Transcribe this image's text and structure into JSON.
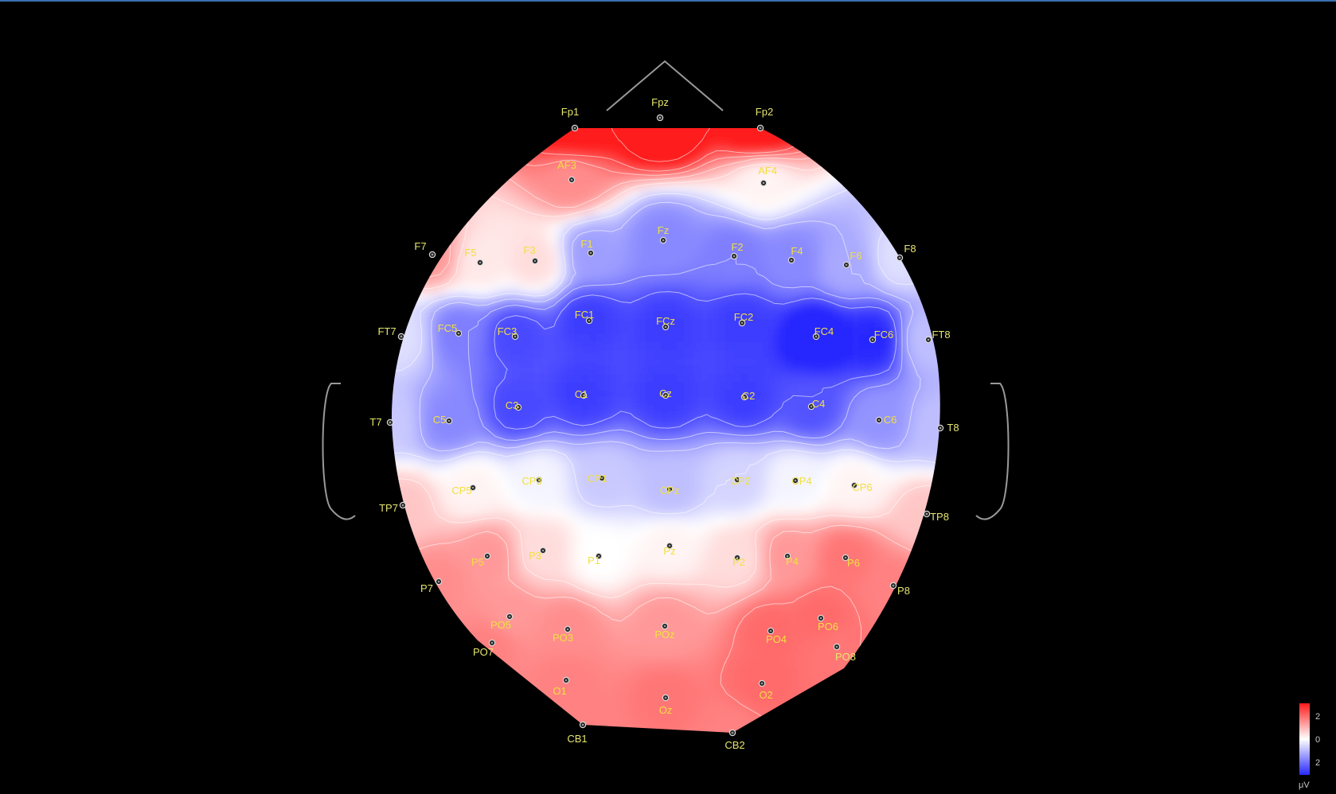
{
  "colors": {
    "background": "#000000",
    "positive": "#ff1a1a",
    "neutral": "#ffffff",
    "negative": "#2828ff",
    "electrode_label_edge": "#e6e66e",
    "electrode_label_inner": "#f0e040",
    "head_outline": "#9a9a9a"
  },
  "colorbar": {
    "ticks": [
      "2",
      "0",
      "2"
    ],
    "unit": "μV",
    "max": 2,
    "min": -2
  },
  "electrodes": [
    {
      "name": "Fpz",
      "value": 3.2
    },
    {
      "name": "Fp1",
      "value": 2.4
    },
    {
      "name": "Fp2",
      "value": 2.4
    },
    {
      "name": "AF3",
      "value": 1.0
    },
    {
      "name": "AF4",
      "value": 0.1
    },
    {
      "name": "F7",
      "value": 0.9
    },
    {
      "name": "F5",
      "value": 0.2
    },
    {
      "name": "F3",
      "value": 0.3
    },
    {
      "name": "F1",
      "value": -0.9
    },
    {
      "name": "Fz",
      "value": -1.1
    },
    {
      "name": "F2",
      "value": -1.2
    },
    {
      "name": "F4",
      "value": -1.1
    },
    {
      "name": "F6",
      "value": -0.8
    },
    {
      "name": "F8",
      "value": -0.3
    },
    {
      "name": "FT7",
      "value": -0.3
    },
    {
      "name": "FC5",
      "value": -1.2
    },
    {
      "name": "FC3",
      "value": -1.7
    },
    {
      "name": "FC1",
      "value": -1.8
    },
    {
      "name": "FCz",
      "value": -1.8
    },
    {
      "name": "FC2",
      "value": -1.8
    },
    {
      "name": "FC4",
      "value": -2.3
    },
    {
      "name": "FC6",
      "value": -2.0
    },
    {
      "name": "FT8",
      "value": -0.6
    },
    {
      "name": "T7",
      "value": -0.5
    },
    {
      "name": "C5",
      "value": -1.1
    },
    {
      "name": "C3",
      "value": -1.7
    },
    {
      "name": "C1",
      "value": -1.8
    },
    {
      "name": "Cz",
      "value": -1.8
    },
    {
      "name": "C2",
      "value": -1.8
    },
    {
      "name": "C4",
      "value": -1.6
    },
    {
      "name": "C6",
      "value": -1.0
    },
    {
      "name": "T8",
      "value": -0.6
    },
    {
      "name": "TP7",
      "value": 0.5
    },
    {
      "name": "CP5",
      "value": 0.1
    },
    {
      "name": "CP3",
      "value": -0.1
    },
    {
      "name": "CP1",
      "value": -0.5
    },
    {
      "name": "CPz",
      "value": -0.6
    },
    {
      "name": "CP2",
      "value": -0.4
    },
    {
      "name": "CP4",
      "value": -0.1
    },
    {
      "name": "CP6",
      "value": 0.1
    },
    {
      "name": "TP8",
      "value": 0.5
    },
    {
      "name": "P7",
      "value": 1.0
    },
    {
      "name": "P5",
      "value": 0.9
    },
    {
      "name": "P3",
      "value": 0.3
    },
    {
      "name": "P1",
      "value": 0.0
    },
    {
      "name": "Pz",
      "value": 0.1
    },
    {
      "name": "P2",
      "value": 0.3
    },
    {
      "name": "P4",
      "value": 0.9
    },
    {
      "name": "P6",
      "value": 1.2
    },
    {
      "name": "P8",
      "value": 1.1
    },
    {
      "name": "PO7",
      "value": 1.1
    },
    {
      "name": "PO5",
      "value": 0.9
    },
    {
      "name": "PO3",
      "value": 1.0
    },
    {
      "name": "POz",
      "value": 0.9
    },
    {
      "name": "PO4",
      "value": 1.3
    },
    {
      "name": "PO6",
      "value": 1.3
    },
    {
      "name": "PO8",
      "value": 1.2
    },
    {
      "name": "O1",
      "value": 1.1
    },
    {
      "name": "Oz",
      "value": 1.2
    },
    {
      "name": "O2",
      "value": 1.3
    },
    {
      "name": "CB1",
      "value": 1.1
    },
    {
      "name": "CB2",
      "value": 1.1
    }
  ]
}
